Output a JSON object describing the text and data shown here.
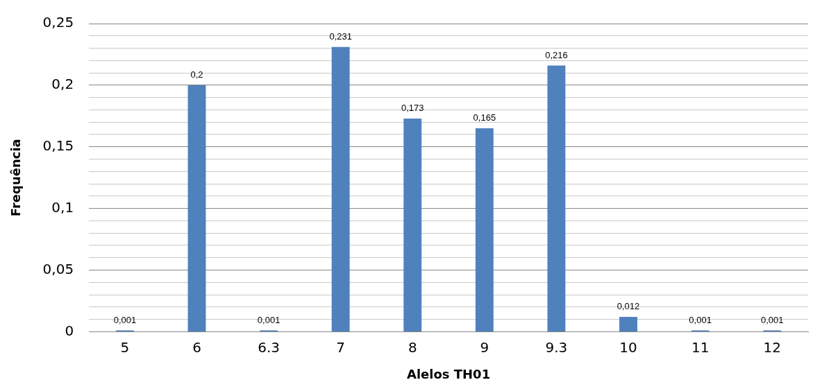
{
  "chart_data": {
    "type": "bar",
    "xlabel": "Alelos TH01",
    "ylabel": "Frequência",
    "categories": [
      "5",
      "6",
      "6.3",
      "7",
      "8",
      "9",
      "9.3",
      "10",
      "11",
      "12"
    ],
    "values": [
      0.001,
      0.2,
      0.001,
      0.231,
      0.173,
      0.165,
      0.216,
      0.012,
      0.001,
      0.001
    ],
    "value_labels": [
      "0,001",
      "0,2",
      "0,001",
      "0,231",
      "0,173",
      "0,165",
      "0,216",
      "0,012",
      "0,001",
      "0,001"
    ],
    "color": "#4f81bd",
    "ylim": [
      0,
      0.25
    ],
    "yticks": [
      {
        "value": 0,
        "label": "0"
      },
      {
        "value": 0.01,
        "label": null
      },
      {
        "value": 0.02,
        "label": null
      },
      {
        "value": 0.03,
        "label": null
      },
      {
        "value": 0.04,
        "label": null
      },
      {
        "value": 0.05,
        "label": "0,05"
      },
      {
        "value": 0.06,
        "label": null
      },
      {
        "value": 0.07,
        "label": null
      },
      {
        "value": 0.08,
        "label": null
      },
      {
        "value": 0.09,
        "label": null
      },
      {
        "value": 0.1,
        "label": "0,1"
      },
      {
        "value": 0.11,
        "label": null
      },
      {
        "value": 0.12,
        "label": null
      },
      {
        "value": 0.13,
        "label": null
      },
      {
        "value": 0.14,
        "label": null
      },
      {
        "value": 0.15,
        "label": "0,15"
      },
      {
        "value": 0.16,
        "label": null
      },
      {
        "value": 0.17,
        "label": null
      },
      {
        "value": 0.18,
        "label": null
      },
      {
        "value": 0.19,
        "label": null
      },
      {
        "value": 0.2,
        "label": "0,2"
      },
      {
        "value": 0.21,
        "label": null
      },
      {
        "value": 0.22,
        "label": null
      },
      {
        "value": 0.23,
        "label": null
      },
      {
        "value": 0.24,
        "label": null
      },
      {
        "value": 0.25,
        "label": "0,25"
      }
    ],
    "grid": "y",
    "legend": false
  }
}
